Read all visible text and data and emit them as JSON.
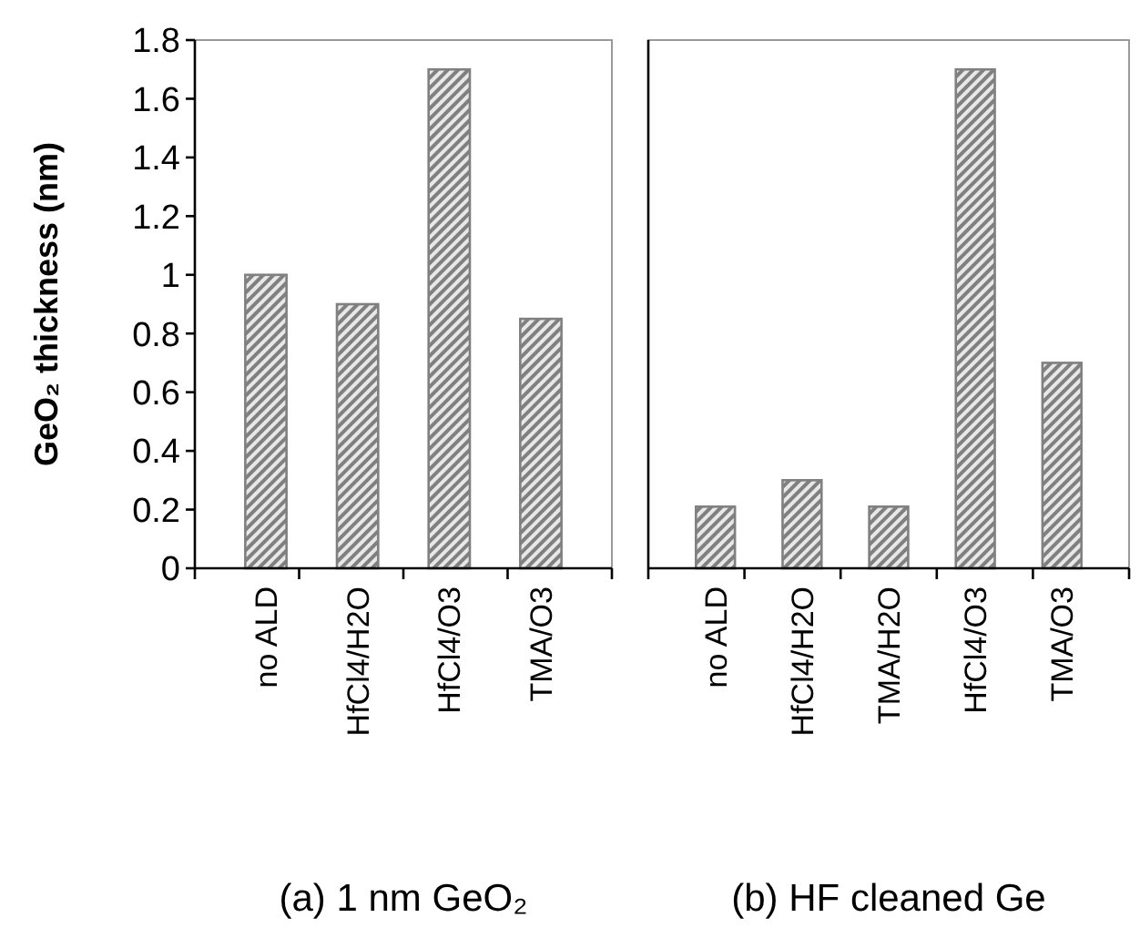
{
  "chart_data": [
    {
      "type": "bar",
      "title": "(a) 1 nm GeO₂",
      "ylabel": "GeO₂ thickness (nm)",
      "categories": [
        "no ALD",
        "HfCl4/H2O",
        "HfCl4/O3",
        "TMA/O3"
      ],
      "values": [
        1.0,
        0.9,
        1.7,
        0.85
      ],
      "color": "#808080",
      "ylim": [
        0,
        1.8
      ],
      "yticks": [
        0,
        0.2,
        0.4,
        0.6,
        0.8,
        1,
        1.2,
        1.4,
        1.6,
        1.8
      ],
      "grid": false
    },
    {
      "type": "bar",
      "title": "(b) HF cleaned Ge",
      "categories": [
        "no ALD",
        "HfCl4/H2O",
        "TMA/H2O",
        "HfCl4/O3",
        "TMA/O3"
      ],
      "values": [
        0.21,
        0.3,
        0.21,
        1.7,
        0.7
      ],
      "color": "#808080",
      "ylim": [
        0,
        1.8
      ],
      "tick_labels": "x",
      "grid": false
    }
  ]
}
